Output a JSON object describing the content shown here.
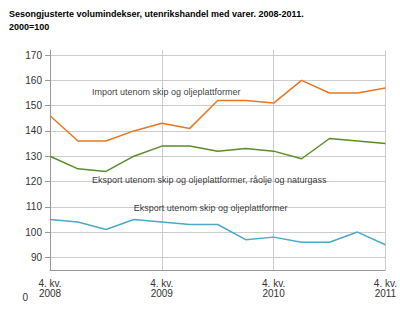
{
  "chart_data": {
    "type": "line",
    "title": "Sesongjusterte volumindekser, utenrikshandel med varer. 2008-2011.",
    "subtitle": "2000=100",
    "categories": [
      "4. kv.\n2008",
      null,
      null,
      null,
      "4. kv.\n2009",
      null,
      null,
      null,
      "4. kv.\n2010",
      null,
      null,
      null,
      "4. kv.\n2011"
    ],
    "series": [
      {
        "name": "Import utenom skip og oljeplattformer",
        "color": "#E87722",
        "values": [
          146,
          136,
          136,
          140,
          143,
          141,
          152,
          152,
          151,
          160,
          155,
          155,
          157
        ]
      },
      {
        "name": "Eksport utenom skip og oljeplattformer, råolje og naturgass",
        "color": "#5B8C2A",
        "values": [
          130,
          125,
          124,
          130,
          134,
          134,
          132,
          133,
          132,
          129,
          137,
          136,
          135
        ]
      },
      {
        "name": "Eksport utenom skip og oljeplattformer",
        "color": "#4FA8C5",
        "values": [
          105,
          104,
          101,
          105,
          104,
          103,
          103,
          97,
          98,
          96,
          96,
          100,
          95
        ]
      }
    ],
    "ylim": [
      85,
      172
    ],
    "yticks": [
      90,
      100,
      110,
      120,
      130,
      140,
      150,
      160,
      170
    ],
    "grid": true,
    "annotations": [
      {
        "text": "Import utenom skip og oljeplattformer",
        "x": 1.5,
        "y": 153
      },
      {
        "text": "Eksport utenom skip og oljeplattformer, råolje og naturgass",
        "x": 1.5,
        "y": 118
      },
      {
        "text": "Eksport utenom skip og oljeplattformer",
        "x": 3.0,
        "y": 107
      },
      {
        "text": "0"
      }
    ]
  }
}
